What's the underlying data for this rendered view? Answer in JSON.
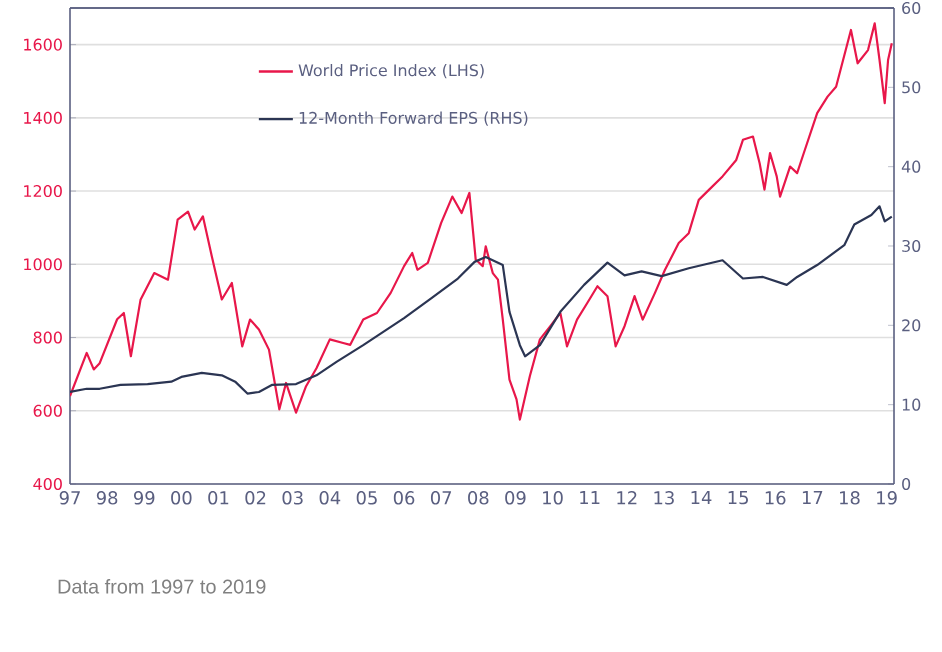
{
  "chart_data": {
    "type": "line",
    "xlim": [
      1997,
      2019.2
    ],
    "xticks": [
      {
        "value": 1997,
        "label": "97"
      },
      {
        "value": 1998,
        "label": "98"
      },
      {
        "value": 1999,
        "label": "99"
      },
      {
        "value": 2000,
        "label": "00"
      },
      {
        "value": 2001,
        "label": "01"
      },
      {
        "value": 2002,
        "label": "02"
      },
      {
        "value": 2003,
        "label": "03"
      },
      {
        "value": 2004,
        "label": "04"
      },
      {
        "value": 2005,
        "label": "05"
      },
      {
        "value": 2006,
        "label": "06"
      },
      {
        "value": 2007,
        "label": "07"
      },
      {
        "value": 2008,
        "label": "08"
      },
      {
        "value": 2009,
        "label": "09"
      },
      {
        "value": 2010,
        "label": "10"
      },
      {
        "value": 2011,
        "label": "11"
      },
      {
        "value": 2012,
        "label": "12"
      },
      {
        "value": 2013,
        "label": "13"
      },
      {
        "value": 2014,
        "label": "14"
      },
      {
        "value": 2015,
        "label": "15"
      },
      {
        "value": 2016,
        "label": "16"
      },
      {
        "value": 2017,
        "label": "17"
      },
      {
        "value": 2018,
        "label": "18"
      },
      {
        "value": 2019,
        "label": "19"
      }
    ],
    "ylim": [
      400,
      1700
    ],
    "yticks": [
      400,
      600,
      800,
      1000,
      1200,
      1400,
      1600
    ],
    "y2lim": [
      0,
      60
    ],
    "y2ticks": [
      0,
      10,
      20,
      30,
      40,
      50,
      60
    ],
    "grid": "y",
    "legend": "top left",
    "annotations": [
      "Data from 1997 to 2019"
    ],
    "series": [
      {
        "name": "World Price Index (LHS)",
        "color": "#e8174a",
        "x": [
          1997.0,
          1997.45,
          1997.64,
          1997.8,
          1998.27,
          1998.45,
          1998.64,
          1998.9,
          1999.27,
          1999.64,
          1999.9,
          2000.18,
          2000.36,
          2000.58,
          2000.82,
          2001.09,
          2001.36,
          2001.64,
          2001.85,
          2002.09,
          2002.36,
          2002.64,
          2002.82,
          2003.09,
          2003.36,
          2003.64,
          2004.0,
          2004.36,
          2004.55,
          2004.9,
          2005.27,
          2005.64,
          2006.0,
          2006.22,
          2006.36,
          2006.64,
          2007.0,
          2007.3,
          2007.55,
          2007.76,
          2007.93,
          2008.12,
          2008.2,
          2008.39,
          2008.53,
          2008.66,
          2008.84,
          2009.03,
          2009.12,
          2009.39,
          2009.66,
          2009.94,
          2010.21,
          2010.39,
          2010.66,
          2010.94,
          2011.21,
          2011.48,
          2011.7,
          2011.94,
          2012.21,
          2012.43,
          2012.76,
          2013.03,
          2013.4,
          2013.67,
          2013.94,
          2014.22,
          2014.58,
          2014.95,
          2015.13,
          2015.4,
          2015.58,
          2015.71,
          2015.86,
          2016.04,
          2016.13,
          2016.4,
          2016.59,
          2016.77,
          2017.13,
          2017.41,
          2017.64,
          2018.04,
          2018.22,
          2018.5,
          2018.68,
          2018.81,
          2018.95,
          2019.04,
          2019.14
        ],
        "values": [
          640,
          758,
          713,
          730,
          850,
          867,
          749,
          903,
          976,
          958,
          1122,
          1144,
          1095,
          1131,
          1022,
          904,
          949,
          776,
          849,
          822,
          767,
          604,
          676,
          595,
          667,
          716,
          795,
          785,
          780,
          849,
          867,
          922,
          995,
          1031,
          985,
          1004,
          1113,
          1185,
          1140,
          1195,
          1013,
          995,
          1049,
          976,
          958,
          849,
          685,
          631,
          576,
          695,
          795,
          831,
          867,
          776,
          849,
          895,
          940,
          913,
          776,
          831,
          913,
          849,
          922,
          985,
          1058,
          1085,
          1176,
          1204,
          1240,
          1285,
          1340,
          1349,
          1276,
          1204,
          1304,
          1240,
          1185,
          1267,
          1249,
          1304,
          1413,
          1458,
          1485,
          1640,
          1549,
          1585,
          1658,
          1558,
          1440,
          1558,
          1604
        ]
      },
      {
        "name": "12-Month Forward EPS (RHS)",
        "color": "#2b3553",
        "axis": "y2",
        "x": [
          1997.0,
          1997.45,
          1997.8,
          1998.36,
          1999.09,
          1999.73,
          2000.0,
          2000.55,
          2001.09,
          2001.45,
          2001.78,
          2002.09,
          2002.45,
          2003.09,
          2003.64,
          2004.18,
          2004.9,
          2005.45,
          2006.0,
          2006.73,
          2007.45,
          2007.9,
          2008.2,
          2008.66,
          2008.84,
          2009.12,
          2009.26,
          2009.66,
          2010.21,
          2010.85,
          2011.48,
          2011.94,
          2012.4,
          2012.94,
          2013.67,
          2014.58,
          2015.13,
          2015.67,
          2016.31,
          2016.59,
          2017.13,
          2017.86,
          2018.13,
          2018.59,
          2018.81,
          2018.95,
          2019.14
        ],
        "values": [
          11.6,
          12.0,
          12.0,
          12.5,
          12.6,
          12.9,
          13.5,
          14.0,
          13.7,
          12.9,
          11.4,
          11.6,
          12.5,
          12.6,
          13.7,
          15.4,
          17.5,
          19.2,
          20.9,
          23.4,
          25.9,
          28.0,
          28.6,
          27.6,
          21.7,
          17.5,
          16.1,
          17.5,
          21.7,
          25.1,
          27.9,
          26.3,
          26.8,
          26.2,
          27.2,
          28.2,
          25.9,
          26.1,
          25.1,
          26.1,
          27.6,
          30.1,
          32.7,
          33.9,
          35.0,
          33.1,
          33.7
        ]
      }
    ]
  }
}
